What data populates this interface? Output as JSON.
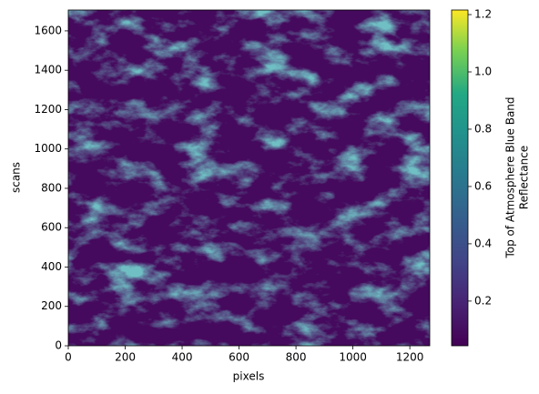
{
  "chart_data": {
    "type": "image",
    "xlabel": "pixels",
    "ylabel": "scans",
    "xlim": [
      0,
      1270
    ],
    "xticks": [
      0,
      200,
      400,
      600,
      800,
      1000,
      1200
    ],
    "ylim": [
      0,
      1706
    ],
    "yticks": [
      0,
      200,
      400,
      600,
      800,
      1000,
      1200,
      1400,
      1600
    ],
    "colorbar_label": [
      "Top of Atmosphere Blue Band",
      "Reflectance"
    ],
    "clim": [
      0.044,
      1.216
    ],
    "cticks": [
      0.2,
      0.4,
      0.6,
      0.8,
      {
        "value": 1,
        "label": "1.0"
      },
      1.2
    ]
  }
}
